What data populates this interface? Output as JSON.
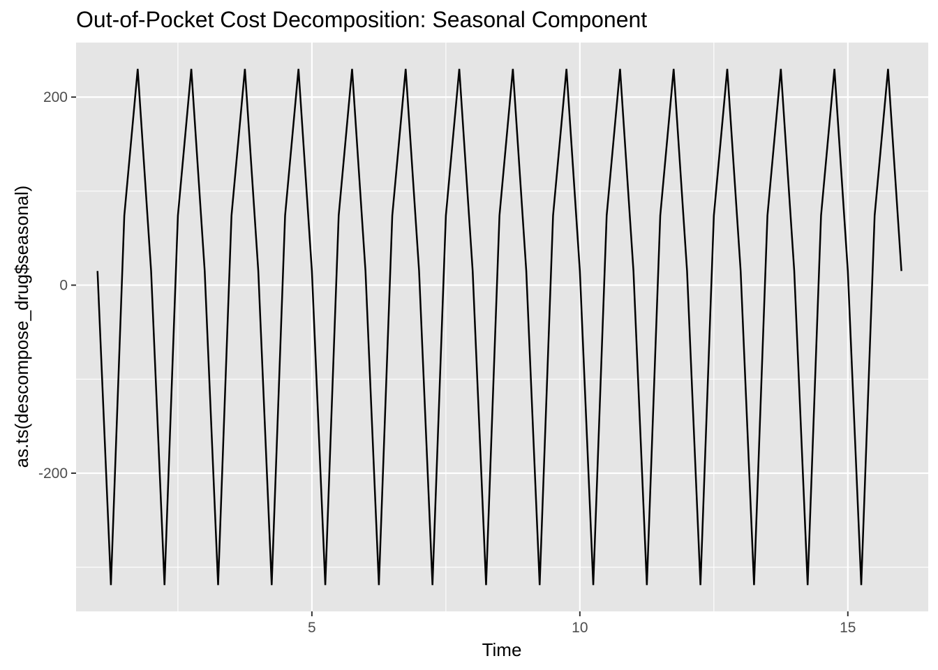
{
  "chart_data": {
    "type": "line",
    "title": "Out-of-Pocket Cost Decomposition: Seasonal Component",
    "xlabel": "Time",
    "ylabel": "as.ts(descompose_drug$seasonal)",
    "xlim": [
      0.6,
      16.5
    ],
    "ylim": [
      -347,
      258
    ],
    "x_ticks": [
      5,
      10,
      15
    ],
    "x_tick_labels": [
      "5",
      "10",
      "15"
    ],
    "y_ticks": [
      -200,
      0,
      200
    ],
    "y_tick_labels": [
      "-200",
      "0",
      "200"
    ],
    "grid": true,
    "legend": "none",
    "colors": {
      "panel_background": "#e5e5e5",
      "grid_line": "#ffffff",
      "series_line": "#000000",
      "tick_mark": "#333333",
      "tick_label": "#4d4d4d"
    },
    "x_start": 1,
    "frequency": 4,
    "seasonal_pattern": [
      15,
      -319,
      74,
      230
    ],
    "series": [
      {
        "values": [
          15,
          -319,
          74,
          230,
          15,
          -319,
          74,
          230,
          15,
          -319,
          74,
          230,
          15,
          -319,
          74,
          230,
          15,
          -319,
          74,
          230,
          15,
          -319,
          74,
          230,
          15,
          -319,
          74,
          230,
          15,
          -319,
          74,
          230,
          15,
          -319,
          74,
          230,
          15,
          -319,
          74,
          230,
          15,
          -319,
          74,
          230,
          15,
          -319,
          74,
          230,
          15,
          -319,
          74,
          230,
          15,
          -319,
          74,
          230,
          15,
          -319,
          74,
          230,
          15
        ]
      }
    ]
  }
}
